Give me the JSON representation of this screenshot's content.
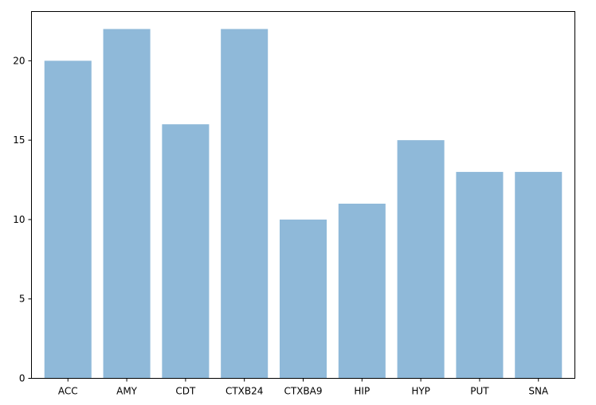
{
  "chart_data": {
    "type": "bar",
    "categories": [
      "ACC",
      "AMY",
      "CDT",
      "CTXB24",
      "CTXBA9",
      "HIP",
      "HYP",
      "PUT",
      "SNA"
    ],
    "values": [
      20,
      22,
      16,
      22,
      10,
      11,
      15,
      13,
      13
    ],
    "title": "",
    "xlabel": "",
    "ylabel": "",
    "ylim": [
      0,
      23.1
    ],
    "yticks": [
      0,
      5,
      10,
      15,
      20
    ],
    "grid": false,
    "bar_color": "#8fb9d9"
  }
}
